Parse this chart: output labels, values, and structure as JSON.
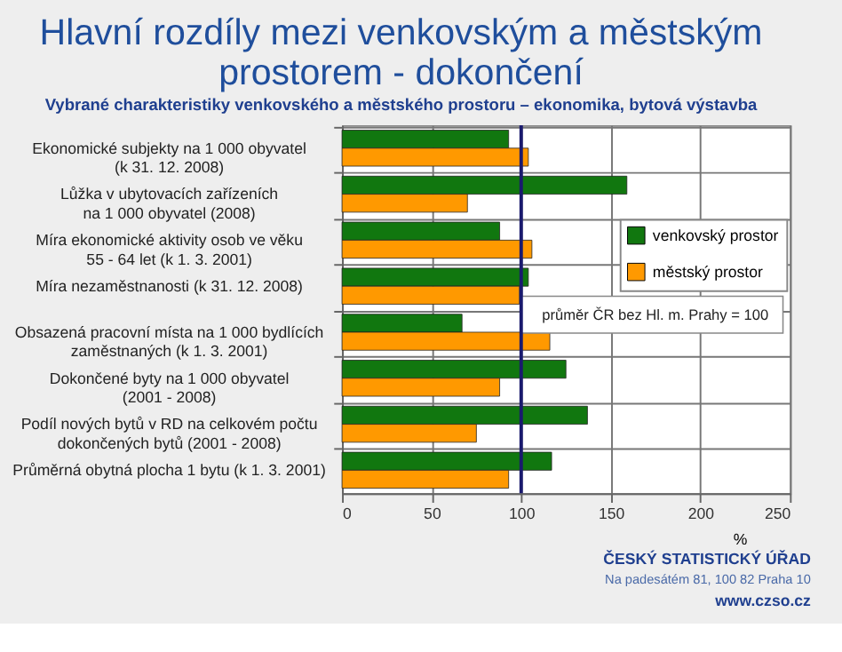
{
  "chart_data": {
    "type": "bar",
    "orientation": "horizontal",
    "title": [
      "Hlavní rozdíly mezi venkovským a městským",
      "prostorem - dokončení"
    ],
    "subtitle": "Vybrané charakteristiky venkovského a městského prostoru – ekonomika, bytová výstavba",
    "categories": [
      "Ekonomické subjekty na 1 000 obyvatel\n(k 31. 12. 2008)",
      "Lůžka v ubytovacích zařízeních\nna 1 000 obyvatel (2008)",
      "Míra ekonomické aktivity osob ve věku\n55 - 64 let (k 1. 3. 2001)",
      "Míra nezaměstnanosti (k 31. 12. 2008)",
      "Obsazená pracovní místa na 1 000 bydlících\nzaměstnaných (k 1. 3. 2001)",
      "Dokončené byty na 1 000 obyvatel\n(2001 - 2008)",
      "Podíl nových bytů v RD na celkovém počtu\ndokončených bytů (2001 - 2008)",
      "Průměrná obytná plocha 1 bytu (k 1. 3. 2001)"
    ],
    "series": [
      {
        "name": "venkovský prostor",
        "color": "#11770f",
        "values": [
          93,
          159,
          88,
          104,
          67,
          125,
          137,
          117
        ]
      },
      {
        "name": "městský prostor",
        "color": "#ff9900",
        "values": [
          104,
          70,
          106,
          99,
          116,
          88,
          75,
          93
        ]
      }
    ],
    "xlim": [
      0,
      250
    ],
    "xticks": [
      0,
      50,
      100,
      150,
      200,
      250
    ],
    "xlabel": "%",
    "ref_lines": [
      {
        "axis": "x",
        "value": 100,
        "label": "průměr ČR bez Hl. m. Prahy = 100",
        "color": "#1a1a6e"
      }
    ],
    "grid": true,
    "legend": "top right",
    "annotations": [
      "ČESKÝ STATISTICKÝ ÚŘAD",
      "Na padesátém 81, 100 82  Praha 10",
      "www.czso.cz"
    ]
  }
}
